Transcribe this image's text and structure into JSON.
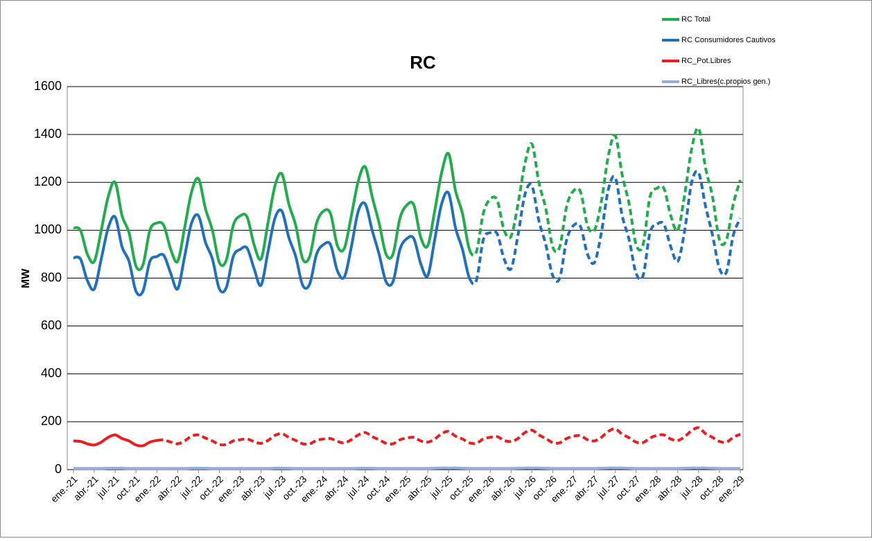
{
  "chart_data": {
    "type": "line",
    "title": "RC",
    "y_label": "MW",
    "categories": [
      "ene.-21",
      null,
      null,
      "abr.-21",
      null,
      null,
      "jul.-21",
      null,
      null,
      "oct.-21",
      null,
      null,
      "ene.-22",
      null,
      null,
      "abr.-22",
      null,
      null,
      "jul.-22",
      null,
      null,
      "oct.-22",
      null,
      null,
      "ene.-23",
      null,
      null,
      "abr.-23",
      null,
      null,
      "jul.-23",
      null,
      null,
      "oct.-23",
      null,
      null,
      "ene.-24",
      null,
      null,
      "abr.-24",
      null,
      null,
      "jul.-24",
      null,
      null,
      "oct.-24",
      null,
      null,
      "ene.-25",
      null,
      null,
      "abr.-25",
      null,
      null,
      "jul.-25",
      null,
      null,
      "oct.-25",
      null,
      null,
      "ene.-26",
      null,
      null,
      "abr.-26",
      null,
      null,
      "jul.-26",
      null,
      null,
      "oct.-26",
      null,
      null,
      "ene.-27",
      null,
      null,
      "abr.-27",
      null,
      null,
      "jul.-27",
      null,
      null,
      "oct.-27",
      null,
      null,
      "ene.-28",
      null,
      null,
      "abr.-28",
      null,
      null,
      "jul.-28",
      null,
      null,
      "oct.-28",
      null,
      null,
      "ene.-29"
    ],
    "series": [
      {
        "name": "RC Total",
        "color": "#1fae4b",
        "dash_from": 57,
        "values": [
          1010,
          1000,
          900,
          870,
          1000,
          1140,
          1200,
          1060,
          990,
          850,
          855,
          1000,
          1030,
          1020,
          920,
          870,
          1010,
          1160,
          1215,
          1090,
          1000,
          865,
          875,
          1020,
          1060,
          1055,
          940,
          880,
          1030,
          1185,
          1235,
          1110,
          1020,
          880,
          890,
          1030,
          1080,
          1070,
          935,
          925,
          1060,
          1205,
          1265,
          1140,
          1030,
          900,
          900,
          1050,
          1105,
          1105,
          970,
          935,
          1080,
          1240,
          1320,
          1165,
          1070,
          920,
          910,
          1070,
          1130,
          1125,
          1000,
          975,
          1110,
          1280,
          1360,
          1200,
          1090,
          930,
          930,
          1100,
          1165,
          1160,
          1020,
          1000,
          1120,
          1310,
          1395,
          1230,
          1110,
          940,
          940,
          1140,
          1175,
          1175,
          1060,
          1000,
          1150,
          1340,
          1425,
          1260,
          1140,
          960,
          960,
          1110,
          1210
        ]
      },
      {
        "name": "RC Consumidores Cautivos",
        "color": "#1f70c1",
        "dash_from": 57,
        "values": [
          885,
          880,
          790,
          755,
          880,
          1010,
          1055,
          930,
          870,
          745,
          745,
          870,
          890,
          895,
          820,
          755,
          890,
          1030,
          1060,
          950,
          880,
          755,
          760,
          890,
          920,
          925,
          840,
          770,
          910,
          1050,
          1080,
          970,
          890,
          770,
          775,
          900,
          940,
          940,
          830,
          805,
          930,
          1080,
          1110,
          1000,
          900,
          785,
          785,
          920,
          965,
          965,
          860,
          810,
          960,
          1110,
          1155,
          1010,
          920,
          800,
          790,
          960,
          990,
          985,
          880,
          840,
          980,
          1150,
          1185,
          1040,
          940,
          810,
          800,
          960,
          1020,
          1015,
          900,
          865,
          990,
          1170,
          1220,
          1060,
          960,
          820,
          810,
          990,
          1025,
          1025,
          930,
          870,
          1000,
          1200,
          1240,
          1100,
          980,
          840,
          825,
          980,
          1050
        ]
      },
      {
        "name": "RC_Pot.Libres",
        "color": "#ee1c1c",
        "dash_from": 12,
        "values": [
          120,
          118,
          108,
          103,
          115,
          135,
          145,
          130,
          120,
          103,
          100,
          115,
          122,
          124,
          115,
          108,
          120,
          140,
          145,
          132,
          120,
          105,
          105,
          120,
          125,
          128,
          117,
          110,
          122,
          143,
          150,
          135,
          122,
          108,
          108,
          122,
          128,
          130,
          118,
          112,
          125,
          145,
          155,
          138,
          125,
          110,
          108,
          125,
          132,
          135,
          120,
          115,
          128,
          150,
          160,
          140,
          128,
          112,
          110,
          128,
          135,
          138,
          122,
          118,
          130,
          155,
          165,
          145,
          130,
          113,
          112,
          130,
          140,
          142,
          125,
          120,
          135,
          160,
          170,
          148,
          133,
          115,
          113,
          132,
          143,
          145,
          128,
          122,
          138,
          163,
          175,
          150,
          135,
          118,
          115,
          135,
          148
        ]
      },
      {
        "name": "RC_Libres(c.propios gen.)",
        "color": "#98acd8",
        "values": [
          5,
          5,
          5,
          5,
          5,
          6,
          6,
          6,
          5,
          5,
          5,
          5,
          5,
          5,
          5,
          5,
          5,
          6,
          6,
          6,
          5,
          5,
          5,
          5,
          5,
          5,
          5,
          5,
          5,
          6,
          6,
          6,
          5,
          5,
          5,
          5,
          5,
          5,
          5,
          5,
          5,
          6,
          6,
          6,
          5,
          5,
          5,
          5,
          5,
          5,
          5,
          5,
          6,
          7,
          7,
          7,
          6,
          5,
          5,
          5,
          5,
          5,
          5,
          5,
          6,
          7,
          7,
          7,
          6,
          5,
          5,
          5,
          5,
          5,
          5,
          5,
          6,
          7,
          7,
          7,
          6,
          5,
          5,
          5,
          5,
          5,
          5,
          5,
          6,
          7,
          7,
          7,
          6,
          5,
          5,
          5,
          5
        ]
      }
    ],
    "ylim": [
      0,
      1600
    ],
    "yticks": [
      0,
      200,
      400,
      600,
      800,
      1000,
      1200,
      1400,
      1600
    ],
    "grid": true,
    "legend": "top-right"
  }
}
